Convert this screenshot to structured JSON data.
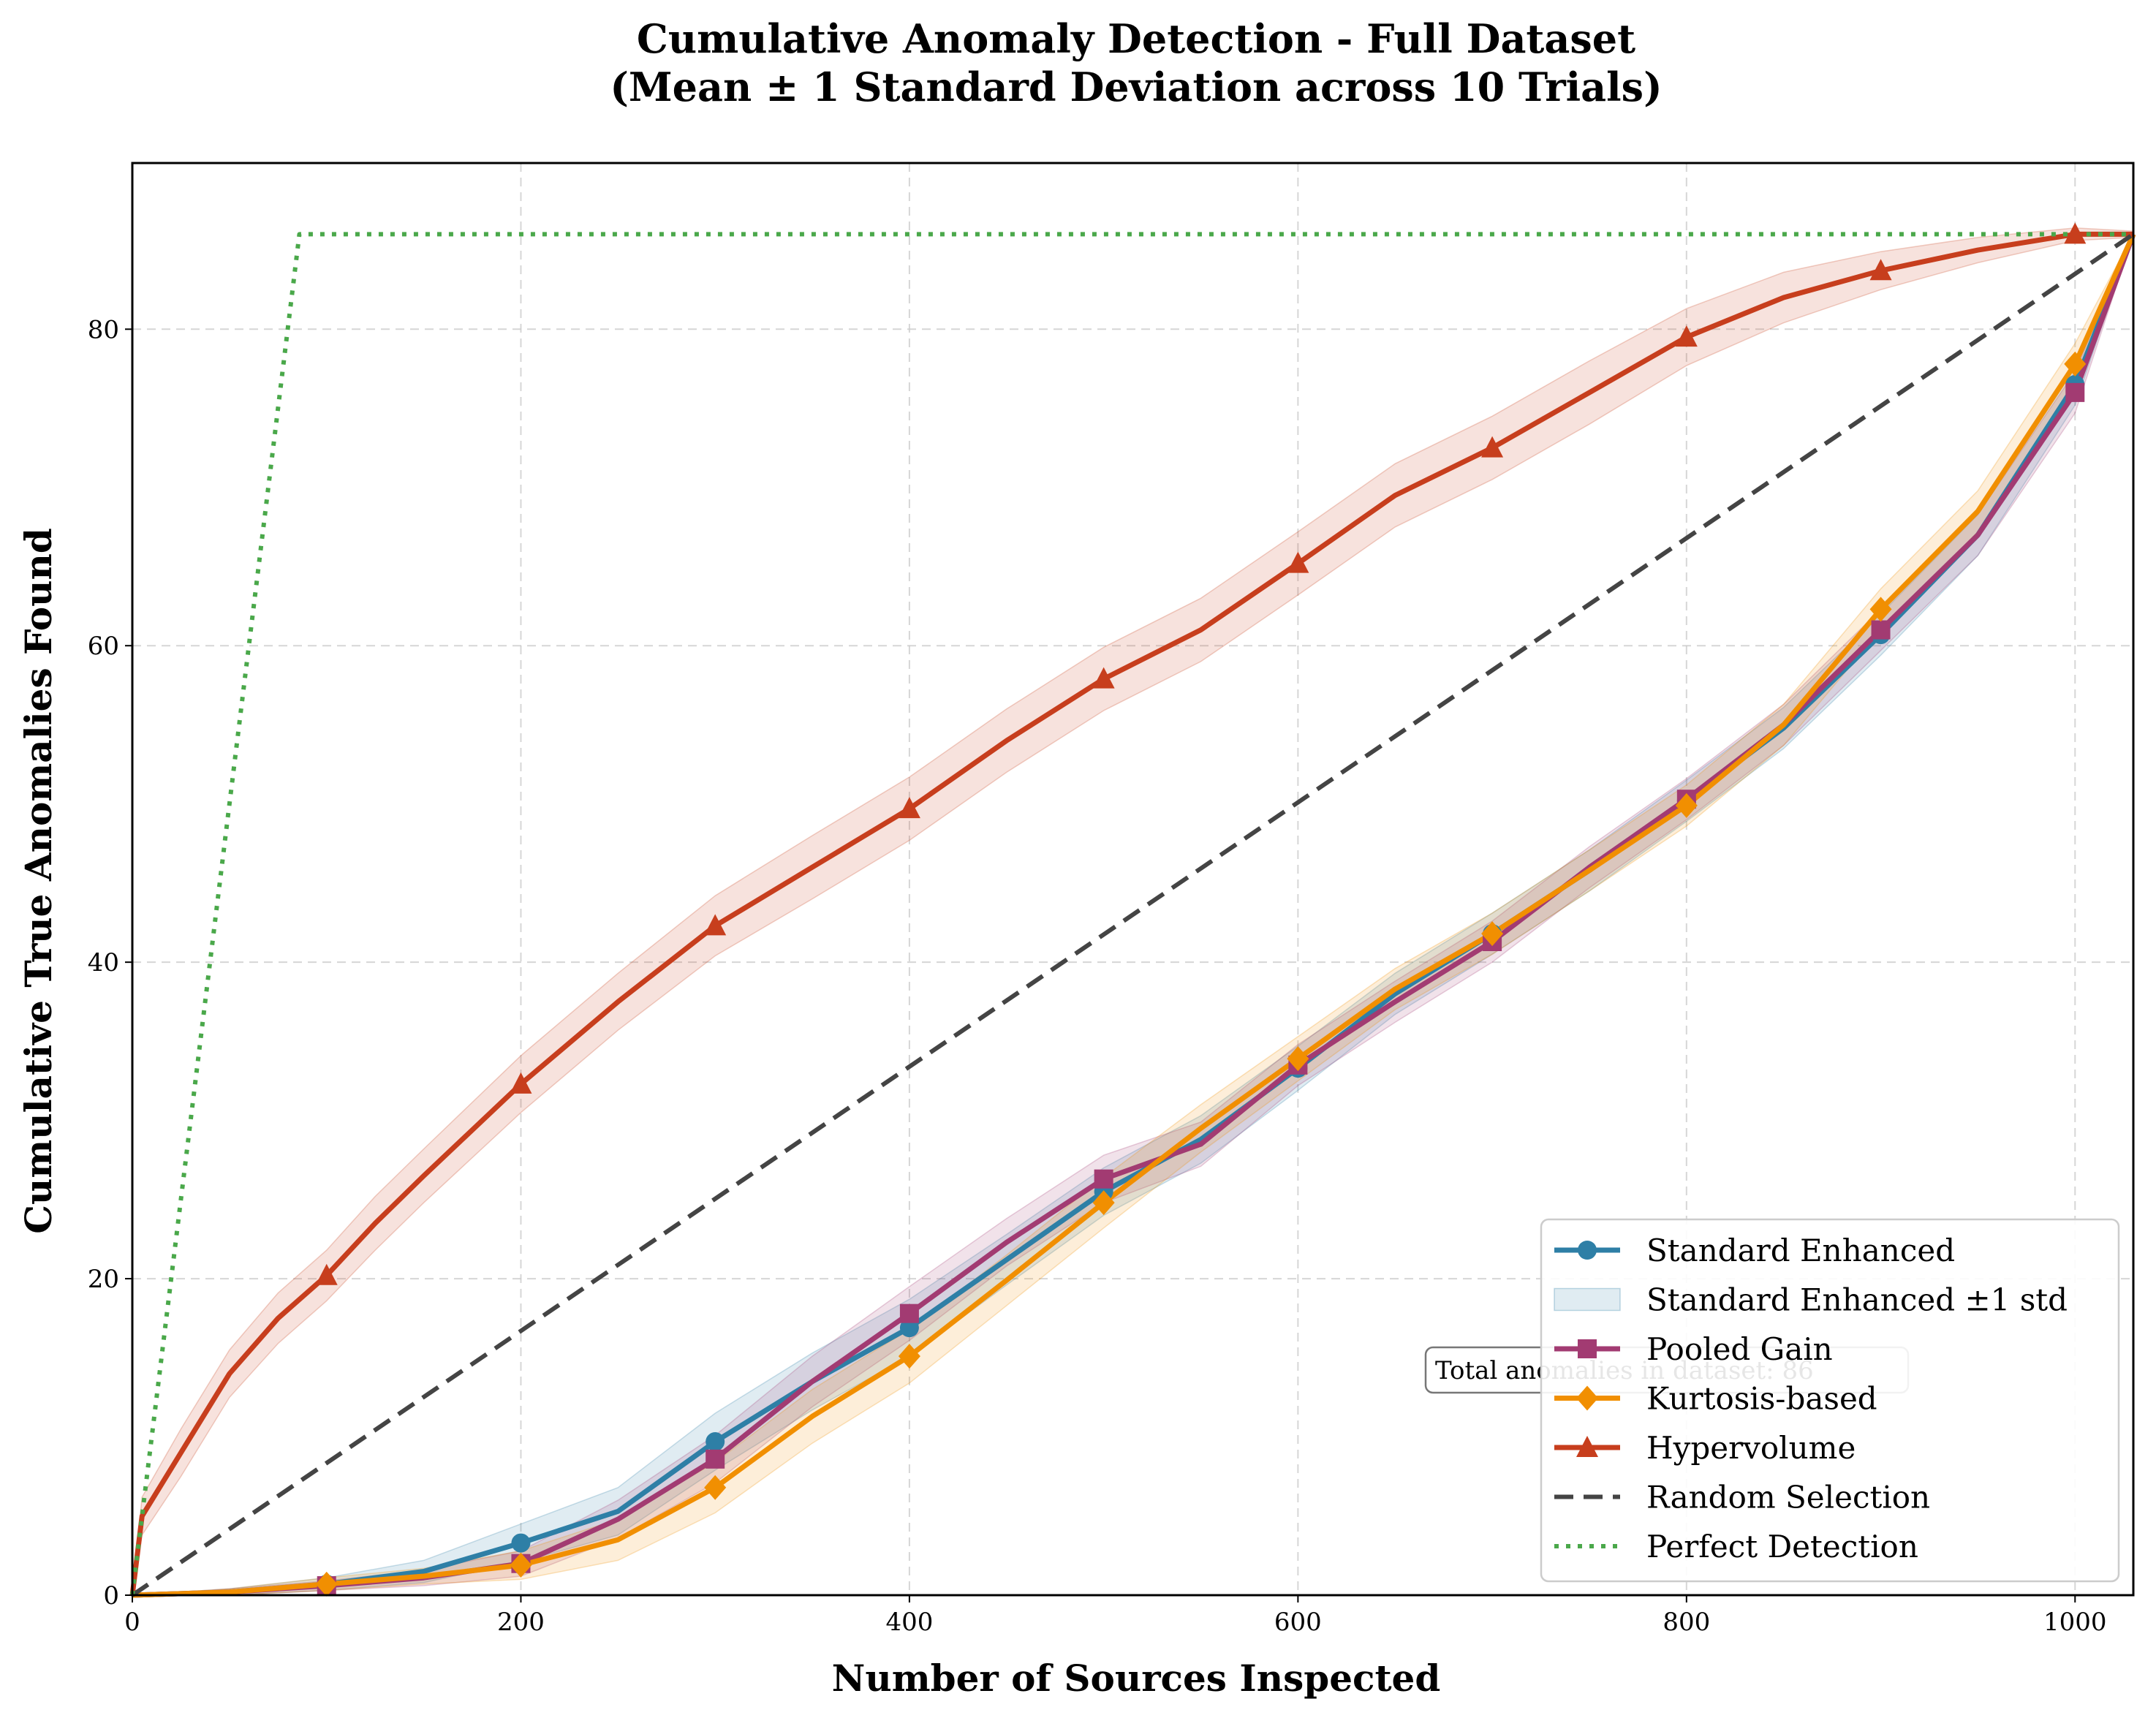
{
  "chart_data": {
    "type": "line",
    "title_line1": "Cumulative Anomaly Detection - Full Dataset",
    "title_line2": "(Mean ± 1 Standard Deviation across 10 Trials)",
    "xlabel": "Number of Sources Inspected",
    "ylabel": "Cumulative True Anomalies Found",
    "xlim": [
      0,
      1030
    ],
    "ylim": [
      0,
      90.5
    ],
    "xticks": [
      0,
      200,
      400,
      600,
      800,
      1000
    ],
    "yticks": [
      0,
      20,
      40,
      60,
      80
    ],
    "grid": true,
    "legend_position": "lower-right",
    "annotation": "Total anomalies in dataset: 86",
    "colors": {
      "standard_enhanced": "#2e7fa6",
      "pooled_gain": "#a23b72",
      "kurtosis": "#f18f01",
      "hypervolume": "#c73e1d",
      "random": "#444444",
      "perfect": "#4aa84a"
    },
    "series": [
      {
        "name": "Standard Enhanced",
        "key": "standard_enhanced",
        "marker": "circle",
        "x": [
          0,
          50,
          100,
          150,
          200,
          250,
          300,
          350,
          400,
          450,
          500,
          550,
          600,
          650,
          700,
          750,
          800,
          850,
          900,
          950,
          1000,
          1030
        ],
        "y": [
          0,
          0.2,
          0.7,
          1.5,
          3.3,
          5.3,
          9.7,
          13.5,
          16.9,
          21.2,
          25.5,
          28.8,
          33.3,
          38.0,
          41.8,
          45.8,
          50.2,
          54.8,
          60.7,
          67.0,
          76.5,
          86
        ],
        "std": [
          0,
          0.2,
          0.4,
          0.7,
          1.2,
          1.5,
          1.8,
          1.8,
          1.8,
          1.6,
          1.5,
          1.5,
          1.4,
          1.3,
          1.3,
          1.3,
          1.3,
          1.3,
          1.3,
          1.3,
          1.3,
          0
        ]
      },
      {
        "name": "Pooled Gain",
        "key": "pooled_gain",
        "marker": "square",
        "x": [
          0,
          50,
          100,
          150,
          200,
          250,
          300,
          350,
          400,
          450,
          500,
          550,
          600,
          650,
          700,
          750,
          800,
          850,
          900,
          950,
          1000,
          1030
        ],
        "y": [
          0,
          0.2,
          0.6,
          1.1,
          2.0,
          4.8,
          8.6,
          13.5,
          17.8,
          22.3,
          26.3,
          28.5,
          33.5,
          37.5,
          41.3,
          46.0,
          50.3,
          55.0,
          61.0,
          67.0,
          76.0,
          86
        ],
        "std": [
          0,
          0.2,
          0.3,
          0.5,
          0.8,
          1.2,
          1.5,
          1.6,
          1.7,
          1.5,
          1.5,
          1.4,
          1.3,
          1.3,
          1.3,
          1.3,
          1.3,
          1.3,
          1.3,
          1.3,
          1.3,
          0
        ]
      },
      {
        "name": "Kurtosis-based",
        "key": "kurtosis",
        "marker": "diamond",
        "x": [
          0,
          50,
          100,
          150,
          200,
          250,
          300,
          350,
          400,
          450,
          500,
          550,
          600,
          650,
          700,
          750,
          800,
          850,
          900,
          950,
          1000,
          1030
        ],
        "y": [
          0,
          0.2,
          0.7,
          1.2,
          1.9,
          3.5,
          6.8,
          11.3,
          15.1,
          19.9,
          24.8,
          29.5,
          33.9,
          38.3,
          41.8,
          45.8,
          49.9,
          55.0,
          62.3,
          68.5,
          77.8,
          86
        ],
        "std": [
          0,
          0.2,
          0.4,
          0.5,
          0.9,
          1.3,
          1.6,
          1.7,
          1.7,
          1.6,
          1.6,
          1.5,
          1.4,
          1.3,
          1.3,
          1.3,
          1.3,
          1.3,
          1.3,
          1.3,
          1.3,
          0
        ]
      },
      {
        "name": "Hypervolume",
        "key": "hypervolume",
        "marker": "triangle",
        "x": [
          0,
          5,
          25,
          50,
          75,
          100,
          125,
          150,
          200,
          250,
          300,
          350,
          400,
          450,
          500,
          550,
          600,
          650,
          700,
          750,
          800,
          850,
          900,
          950,
          1000,
          1030
        ],
        "y": [
          0,
          5,
          9,
          14,
          17.5,
          20.2,
          23.5,
          26.5,
          32.3,
          37.5,
          42.3,
          46.0,
          49.7,
          54.0,
          57.9,
          61.0,
          65.2,
          69.5,
          72.5,
          76.0,
          79.5,
          82.0,
          83.7,
          85.0,
          86.0,
          86.0
        ],
        "std": [
          0,
          1.2,
          1.5,
          1.5,
          1.6,
          1.6,
          1.7,
          1.7,
          1.8,
          1.8,
          1.9,
          2.0,
          2.0,
          2.0,
          2.0,
          2.0,
          2.0,
          2.0,
          2.0,
          2.0,
          1.8,
          1.6,
          1.2,
          0.8,
          0.4,
          0.2
        ]
      },
      {
        "name": "Random Selection",
        "key": "random",
        "x": [
          0,
          1030
        ],
        "y": [
          0,
          86
        ]
      },
      {
        "name": "Perfect Detection",
        "key": "perfect",
        "x": [
          0,
          86,
          1030
        ],
        "y": [
          0,
          86,
          86
        ]
      }
    ],
    "markers_at": [
      100,
      200,
      300,
      400,
      500,
      600,
      700,
      800,
      900,
      1000
    ],
    "legend": [
      "Standard Enhanced",
      "Standard Enhanced ±1 std",
      "Pooled Gain",
      "Kurtosis-based",
      "Hypervolume",
      "Random Selection",
      "Perfect Detection"
    ]
  }
}
